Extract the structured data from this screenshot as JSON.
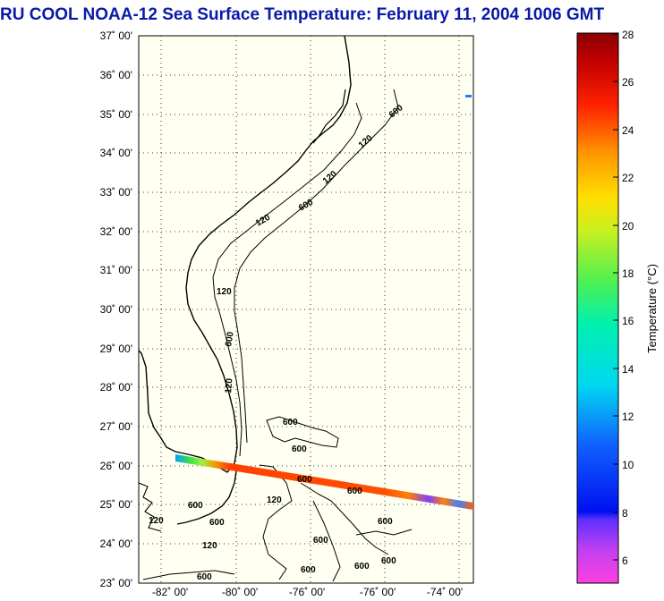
{
  "title": "RU COOL  NOAA-12  Sea Surface Temperature:  February 11, 2004 1006 GMT",
  "map": {
    "y_ticks": [
      "37˚ 00'",
      "36˚ 00'",
      "35˚ 00'",
      "34˚ 00'",
      "33˚ 00'",
      "32˚ 00'",
      "31˚ 00'",
      "30˚ 00'",
      "29˚ 00'",
      "28˚ 00'",
      "27˚ 00'",
      "26˚ 00'",
      "25˚ 00'",
      "24˚ 00'",
      "23˚ 00'"
    ],
    "x_ticks": [
      "-82˚ 00'",
      "-80˚ 00'",
      "-76˚ 00'",
      "-76˚ 00'",
      "-74˚ 00'"
    ],
    "contour_labels": [
      "600",
      "120",
      "120",
      "600",
      "120",
      "600",
      "120",
      "600",
      "120",
      "600",
      "600",
      "600",
      "600",
      "600",
      "120",
      "600",
      "120",
      "600",
      "120",
      "600",
      "600",
      "600",
      "600"
    ],
    "colors": {
      "background": "#fffff2",
      "coast": "#000000",
      "grid": "#000000"
    }
  },
  "colorbar": {
    "ticks": [
      "28",
      "26",
      "24",
      "22",
      "20",
      "18",
      "16",
      "14",
      "12",
      "10",
      "8",
      "6"
    ],
    "label": "Temperature (°C)",
    "range": [
      5,
      28
    ]
  }
}
